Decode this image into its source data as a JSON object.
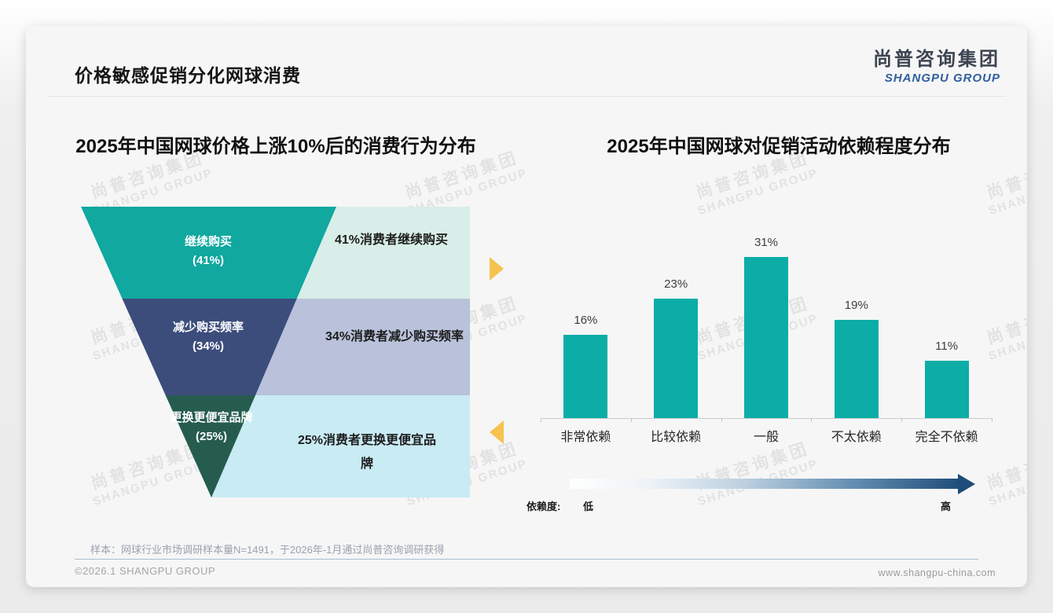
{
  "slide": {
    "header": {
      "title": "价格敏感促销分化网球消费"
    },
    "logo": {
      "name_cn": "尚普咨询集团",
      "name_en": "SHANGPU GROUP"
    },
    "watermark": {
      "line1": "尚普咨询集团",
      "line2": "SHANGPU GROUP"
    },
    "footnote": "样本：网球行业市场调研样本量N=1491，于2026年-1月通过尚普咨询调研获得",
    "footer": {
      "copyright": "©2026.1 SHANGPU GROUP",
      "website": "www.shangpu-china.com"
    }
  },
  "chart_data": [
    {
      "type": "funnel",
      "title": "2025年中国网球价格上涨10%后的消费行为分布",
      "stages": [
        {
          "label": "继续购买",
          "value": 41,
          "value_label": "(41%)",
          "note": "41%消费者继续购买",
          "color": "#10a89f",
          "note_bg": "#d9eee8"
        },
        {
          "label": "减少购买频率",
          "value": 34,
          "value_label": "(34%)",
          "note": "34%消费者减少购买频率",
          "color": "#3c4d7c",
          "note_bg": "#b9c2da"
        },
        {
          "label": "更换更便宜品牌",
          "value": 25,
          "value_label": "(25%)",
          "note": "25%消费者更换更便宜品牌",
          "color": "#265c4e",
          "note_bg": "#c9ebf4"
        }
      ],
      "accent_arrow_color": "#f6c350"
    },
    {
      "type": "bar",
      "title": "2025年中国网球对促销活动依赖程度分布",
      "categories": [
        "非常依赖",
        "比较依赖",
        "一般",
        "不太依赖",
        "完全不依赖"
      ],
      "values": [
        16,
        23,
        31,
        19,
        11
      ],
      "unit": "%",
      "bar_color": "#0cada6",
      "ylim": [
        0,
        35
      ],
      "grid": false,
      "legend_axis": {
        "label": "依赖度:",
        "low": "低",
        "high": "高"
      },
      "gradient": {
        "from": "#ffffff",
        "to": "#1f4e79"
      }
    }
  ]
}
